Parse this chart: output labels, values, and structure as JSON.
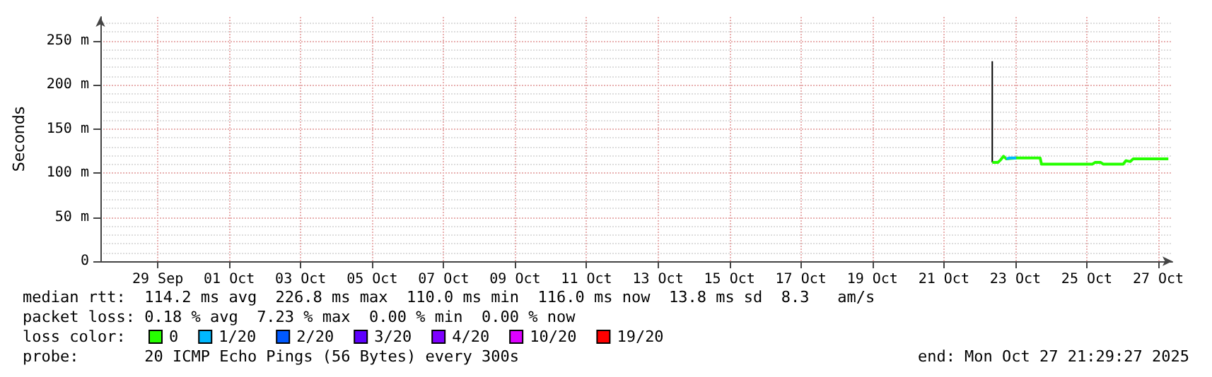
{
  "chart_data": {
    "type": "line",
    "ylabel": "Seconds",
    "xlim": [
      "2025-09-27T21:29",
      "2025-10-27T21:29"
    ],
    "xticks": [
      {
        "value": "2025-09-29T12:00",
        "label": "29 Sep"
      },
      {
        "value": "2025-10-01T12:00",
        "label": "01 Oct"
      },
      {
        "value": "2025-10-03T12:00",
        "label": "03 Oct"
      },
      {
        "value": "2025-10-05T12:00",
        "label": "05 Oct"
      },
      {
        "value": "2025-10-07T12:00",
        "label": "07 Oct"
      },
      {
        "value": "2025-10-09T12:00",
        "label": "09 Oct"
      },
      {
        "value": "2025-10-11T12:00",
        "label": "11 Oct"
      },
      {
        "value": "2025-10-13T12:00",
        "label": "13 Oct"
      },
      {
        "value": "2025-10-15T12:00",
        "label": "15 Oct"
      },
      {
        "value": "2025-10-17T12:00",
        "label": "17 Oct"
      },
      {
        "value": "2025-10-19T12:00",
        "label": "19 Oct"
      },
      {
        "value": "2025-10-21T12:00",
        "label": "21 Oct"
      },
      {
        "value": "2025-10-23T12:00",
        "label": "23 Oct"
      },
      {
        "value": "2025-10-25T12:00",
        "label": "25 Oct"
      },
      {
        "value": "2025-10-27T12:00",
        "label": "27 Oct"
      }
    ],
    "ylim": [
      0,
      277
    ],
    "yticks": [
      {
        "value": 0,
        "label": "0"
      },
      {
        "value": 50,
        "label": "50 m"
      },
      {
        "value": 100,
        "label": "100 m"
      },
      {
        "value": 150,
        "label": "150 m"
      },
      {
        "value": 200,
        "label": "200 m"
      },
      {
        "value": 250,
        "label": "250 m"
      }
    ],
    "grid": true,
    "legend": "bottom left",
    "marker": "none",
    "line_style": "solid",
    "series": [
      {
        "color": "#000000",
        "x": [
          "2025-10-22T20:30",
          "2025-10-22T20:30"
        ],
        "values": [
          112,
          226.8
        ]
      },
      {
        "name": "0",
        "color": "#26ff00",
        "x": [
          "2025-10-22T20:30",
          "2025-10-23T00:15",
          "2025-10-23T02:10",
          "2025-10-23T04:05",
          "2025-10-23T06:00",
          "2025-10-23T12:35",
          "2025-10-24T04:40",
          "2025-10-24T05:35",
          "2025-10-25T15:35",
          "2025-10-25T17:30",
          "2025-10-25T21:20",
          "2025-10-25T23:10",
          "2025-10-26T12:25",
          "2025-10-26T14:20",
          "2025-10-26T17:10",
          "2025-10-26T19:05",
          "2025-10-27T18:45"
        ],
        "values": [
          112,
          112,
          115,
          119,
          116,
          117,
          117,
          110,
          110,
          112,
          112,
          110,
          110,
          114,
          113,
          116,
          116
        ]
      },
      {
        "name": "1/20",
        "color": "#00b8ff",
        "x": [
          "2025-10-23T06:00",
          "2025-10-23T07:50",
          "2025-10-23T12:35"
        ],
        "values": [
          116,
          117,
          117
        ]
      },
      {
        "name": "2/20",
        "color": "#0059ff"
      },
      {
        "name": "3/20",
        "color": "#5e00ff"
      },
      {
        "name": "4/20",
        "color": "#7e00ff"
      },
      {
        "name": "10/20",
        "color": "#dd00ff"
      },
      {
        "name": "19/20",
        "color": "#ff0000"
      }
    ],
    "annotations": [
      "median rtt:  114.2 ms avg  226.8 ms max  110.0 ms min  116.0 ms now  13.8 ms sd  8.3   am/s",
      "packet loss: 0.18 % avg  7.23 % max  0.00 % min  0.00 % now",
      "loss color:",
      "probe:       20 ICMP Echo Pings (56 Bytes) every 300s",
      "end: Mon Oct 27 21:29:27 2025"
    ]
  }
}
